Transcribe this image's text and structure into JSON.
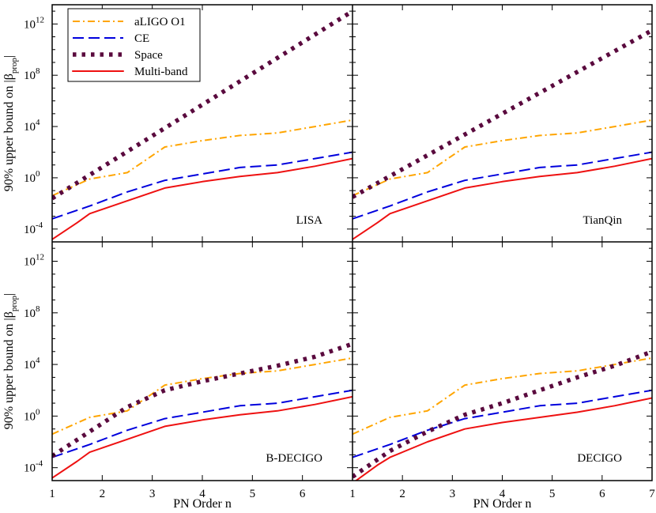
{
  "chart_data": {
    "type": "line",
    "layout": "2x2 panels, shared axes",
    "x_ticks": [
      1,
      2,
      3,
      4,
      5,
      6,
      7
    ],
    "y_ticks": [
      {
        "exp": -4,
        "mant": "10",
        "sup": "-4"
      },
      {
        "exp": 0,
        "mant": "10",
        "sup": "0"
      },
      {
        "exp": 4,
        "mant": "10",
        "sup": "4"
      },
      {
        "exp": 8,
        "mant": "10",
        "sup": "8"
      },
      {
        "exp": 12,
        "mant": "10",
        "sup": "12"
      }
    ],
    "xlim": [
      1,
      7
    ],
    "ylim_log10": [
      -5,
      13.5
    ],
    "xlabel": "PN Order n",
    "ylabel": {
      "main": "90% upper bound on |β",
      "sub": "prop",
      "tail": "|"
    },
    "legend": [
      {
        "key": "aligo",
        "label": "aLIGO O1"
      },
      {
        "key": "ce",
        "label": "CE"
      },
      {
        "key": "space",
        "label": "Space"
      },
      {
        "key": "multi",
        "label": "Multi-band"
      }
    ],
    "colors": {
      "aligo": "#ffa500",
      "ce": "#0000dd",
      "space": "#5a0a3e",
      "multi": "#ee1111",
      "axis": "#000000"
    },
    "panels": [
      {
        "name": "LISA",
        "label": "LISA",
        "series": {
          "aligo": {
            "x": [
              1,
              1.75,
              2.5,
              3.25,
              4,
              4.75,
              5.5,
              6.25,
              7
            ],
            "log10_y": [
              -1.4,
              -0.1,
              0.4,
              2.4,
              2.9,
              3.3,
              3.5,
              4.0,
              4.5
            ]
          },
          "ce": {
            "x": [
              1,
              1.75,
              2.5,
              3.25,
              4,
              4.75,
              5.5,
              6.25,
              7
            ],
            "log10_y": [
              -3.2,
              -2.2,
              -1.1,
              -0.2,
              0.3,
              0.8,
              1.0,
              1.5,
              2.0
            ]
          },
          "space": {
            "x": [
              1,
              7
            ],
            "log10_y": [
              -1.6,
              13.0
            ]
          },
          "multi": {
            "x": [
              1,
              1.5,
              1.75,
              2.5,
              3.25,
              4,
              4.75,
              5.5,
              6.25,
              7
            ],
            "log10_y": [
              -4.8,
              -3.5,
              -2.8,
              -1.8,
              -0.8,
              -0.3,
              0.1,
              0.4,
              0.9,
              1.5
            ]
          }
        }
      },
      {
        "name": "TianQin",
        "label": "TianQin",
        "series": {
          "aligo": {
            "x": [
              1,
              1.75,
              2.5,
              3.25,
              4,
              4.75,
              5.5,
              6.25,
              7
            ],
            "log10_y": [
              -1.4,
              -0.1,
              0.4,
              2.4,
              2.9,
              3.3,
              3.5,
              4.0,
              4.5
            ]
          },
          "ce": {
            "x": [
              1,
              1.75,
              2.5,
              3.25,
              4,
              4.75,
              5.5,
              6.25,
              7
            ],
            "log10_y": [
              -3.2,
              -2.2,
              -1.1,
              -0.2,
              0.3,
              0.8,
              1.0,
              1.5,
              2.0
            ]
          },
          "space": {
            "x": [
              1,
              7
            ],
            "log10_y": [
              -1.5,
              11.5
            ]
          },
          "multi": {
            "x": [
              1,
              1.5,
              1.75,
              2.5,
              3.25,
              4,
              4.75,
              5.5,
              6.25,
              7
            ],
            "log10_y": [
              -4.8,
              -3.5,
              -2.8,
              -1.8,
              -0.8,
              -0.3,
              0.1,
              0.4,
              0.9,
              1.5
            ]
          }
        }
      },
      {
        "name": "B-DECIGO",
        "label": "B-DECIGO",
        "series": {
          "aligo": {
            "x": [
              1,
              1.75,
              2.5,
              3.25,
              4,
              4.75,
              5.5,
              6.25,
              7
            ],
            "log10_y": [
              -1.4,
              -0.1,
              0.4,
              2.4,
              2.9,
              3.3,
              3.5,
              4.0,
              4.5
            ]
          },
          "ce": {
            "x": [
              1,
              1.75,
              2.5,
              3.25,
              4,
              4.75,
              5.5,
              6.25,
              7
            ],
            "log10_y": [
              -3.2,
              -2.2,
              -1.1,
              -0.2,
              0.3,
              0.8,
              1.0,
              1.5,
              2.0
            ]
          },
          "space": {
            "x": [
              1,
              1.75,
              2.5,
              3.25,
              4,
              4.75,
              5.5,
              6.25,
              7
            ],
            "log10_y": [
              -3.1,
              -1.2,
              0.7,
              2.0,
              2.7,
              3.3,
              3.9,
              4.6,
              5.6
            ]
          },
          "multi": {
            "x": [
              1,
              1.5,
              1.75,
              2.5,
              3.25,
              4,
              4.75,
              5.5,
              6.25,
              7
            ],
            "log10_y": [
              -4.8,
              -3.5,
              -2.8,
              -1.8,
              -0.8,
              -0.3,
              0.1,
              0.4,
              0.9,
              1.5
            ]
          }
        }
      },
      {
        "name": "DECIGO",
        "label": "DECIGO",
        "series": {
          "aligo": {
            "x": [
              1,
              1.75,
              2.5,
              3.25,
              4,
              4.75,
              5.5,
              6.25,
              7
            ],
            "log10_y": [
              -1.4,
              -0.1,
              0.4,
              2.4,
              2.9,
              3.3,
              3.5,
              4.0,
              4.5
            ]
          },
          "ce": {
            "x": [
              1,
              1.75,
              2.5,
              3.25,
              4,
              4.75,
              5.5,
              6.25,
              7
            ],
            "log10_y": [
              -3.2,
              -2.2,
              -1.1,
              -0.2,
              0.3,
              0.8,
              1.0,
              1.5,
              2.0
            ]
          },
          "space": {
            "x": [
              1,
              1.75,
              2.5,
              3.25,
              4,
              4.75,
              5.5,
              6.25,
              7
            ],
            "log10_y": [
              -4.7,
              -2.7,
              -1.2,
              0.1,
              1.0,
              2.0,
              3.0,
              3.9,
              5.0
            ]
          },
          "multi": {
            "x": [
              1,
              1.5,
              1.75,
              2.5,
              3.25,
              4,
              4.75,
              5.5,
              6.25,
              7
            ],
            "log10_y": [
              -5.2,
              -3.8,
              -3.2,
              -2.0,
              -1.0,
              -0.5,
              -0.1,
              0.3,
              0.8,
              1.4
            ]
          }
        }
      }
    ]
  }
}
